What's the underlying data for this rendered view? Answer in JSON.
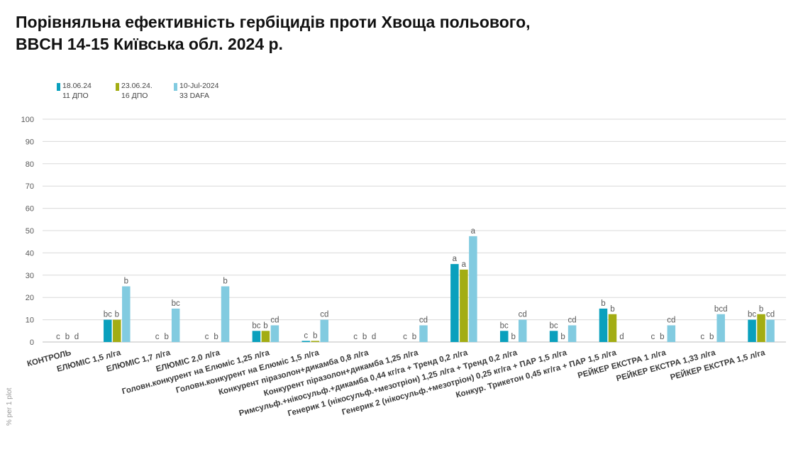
{
  "title_line1": "Порівняльна ефективність гербіцидів проти Хвоща польового,",
  "title_line2": "BBCH 14-15 Київська обл. 2024 р.",
  "colors": {
    "s1": "#0aa0bd",
    "s2": "#a3ad14",
    "s3": "#82cbe0"
  },
  "chart_data": {
    "type": "bar",
    "title": "Порівняльна ефективність гербіцидів проти Хвоща польового, BBCH 14-15 Київська обл. 2024 р.",
    "ylabel": "% per 1 plot",
    "xlabel": "",
    "ylim": [
      0,
      100
    ],
    "yticks": [
      0,
      10,
      20,
      30,
      40,
      50,
      60,
      70,
      80,
      90,
      100
    ],
    "grid": true,
    "legend_position": "top-left",
    "categories": [
      "КОНТРОЛЬ",
      "ЕЛЮМІС 1,5 л/га",
      "ЕЛЮМІС 1,7 л/га",
      "ЕЛЮМІС 2,0 л/га",
      "Головн.конкурент на Елюміс 1,25 л/га",
      "Головн.конкурент на Елюміс 1,5 л/га",
      "Конкурент піразолон+дикамба 0,8 л/га",
      "Конкурент піразолон+дикамба 1,25 л/га",
      "Римсульф.+нікосульф.+дикамба 0,44 кг/га + Тренд 0,2 л/га",
      "Генерик 1 (нікосульф.+мезотріон) 1,25 л/га + Тренд  0,2 л/га",
      "Генерик 2 (нікосульф.+мезотріон) 0,25 кг/га + ПАР 1,5 л/га",
      "Конкур. Трикетон  0,45 кг/га + ПАР 1,5 л/га",
      "РЕЙКЕР ЕКСТРА 1 л/га",
      "РЕЙКЕР ЕКСТРА 1,33 л/га",
      "РЕЙКЕР ЕКСТРА 1,5 л/га"
    ],
    "series": [
      {
        "name": "18.06.24 11 ДПО",
        "legend_line1": "18.06.24",
        "legend_line2": "11 ДПО",
        "values": [
          0,
          10,
          0,
          0,
          5,
          0.5,
          0,
          0,
          35,
          5,
          5,
          15,
          0,
          0,
          10
        ],
        "labels": [
          "c",
          "bc",
          "c",
          "c",
          "bc",
          "c",
          "c",
          "c",
          "a",
          "bc",
          "bc",
          "b",
          "c",
          "c",
          "bc"
        ]
      },
      {
        "name": "23.06.24. 16 ДПО",
        "legend_line1": "23.06.24.",
        "legend_line2": "16 ДПО",
        "values": [
          0,
          10,
          0,
          0,
          5,
          0.5,
          0,
          0,
          32.5,
          0,
          0,
          12.5,
          0,
          0,
          12.5
        ],
        "labels": [
          "b",
          "b",
          "b",
          "b",
          "b",
          "b",
          "b",
          "b",
          "a",
          "b",
          "b",
          "b",
          "b",
          "b",
          "b"
        ]
      },
      {
        "name": "10-Jul-2024 33 DAFA",
        "legend_line1": "10-Jul-2024",
        "legend_line2": "33 DAFA",
        "values": [
          0,
          25,
          15,
          25,
          7.5,
          10,
          0,
          7.5,
          47.5,
          10,
          7.5,
          0,
          7.5,
          12.5,
          10
        ],
        "labels": [
          "d",
          "b",
          "bc",
          "b",
          "cd",
          "cd",
          "d",
          "cd",
          "a",
          "cd",
          "cd",
          "d",
          "cd",
          "bcd",
          "cd"
        ]
      }
    ]
  }
}
